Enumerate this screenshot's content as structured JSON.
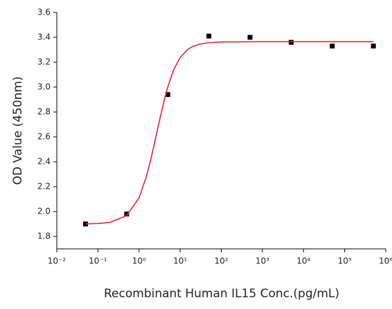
{
  "chart_data": {
    "type": "scatter",
    "x_label": "Recombinant Human IL15 Conc.(pg/mL)",
    "y_label": "OD Value (450nm)",
    "xscale": "log",
    "xlim": [
      0.01,
      1000000
    ],
    "xticks": [
      {
        "value": 0.01,
        "label": "10⁻²"
      },
      {
        "value": 0.1,
        "label": "10⁻¹"
      },
      {
        "value": 1,
        "label": "10⁰"
      },
      {
        "value": 10,
        "label": "10¹"
      },
      {
        "value": 100,
        "label": "10²"
      },
      {
        "value": 1000,
        "label": "10³"
      },
      {
        "value": 10000,
        "label": "10⁴"
      },
      {
        "value": 100000,
        "label": "10⁵"
      },
      {
        "value": 1000000,
        "label": "10⁶"
      }
    ],
    "ylim": [
      1.7,
      3.6
    ],
    "yticks": [
      1.8,
      {
        "value": 2,
        "label": "2.0"
      },
      2.2,
      2.4,
      2.6,
      2.8,
      {
        "value": 3,
        "label": "3.0"
      },
      3.2,
      3.4,
      3.6
    ],
    "grid": false,
    "series": [
      {
        "style": "markers",
        "color": "#000000",
        "x": [
          0.05,
          0.5,
          5,
          50,
          500,
          5000,
          50000,
          500000
        ],
        "values": [
          1.9,
          1.98,
          2.94,
          3.41,
          3.4,
          3.36,
          3.33,
          3.33
        ]
      },
      {
        "style": "line",
        "color": "#e8242a",
        "x": [
          0.05,
          0.1,
          0.2,
          0.5,
          1,
          1.5,
          2,
          3,
          4,
          5,
          7,
          10,
          15,
          20,
          30,
          50,
          100,
          1000,
          10000,
          100000,
          500000
        ],
        "values": [
          1.901,
          1.904,
          1.913,
          1.967,
          2.11,
          2.278,
          2.439,
          2.702,
          2.881,
          3.001,
          3.142,
          3.238,
          3.301,
          3.326,
          3.346,
          3.357,
          3.363,
          3.365,
          3.365,
          3.365,
          3.365
        ]
      }
    ]
  }
}
